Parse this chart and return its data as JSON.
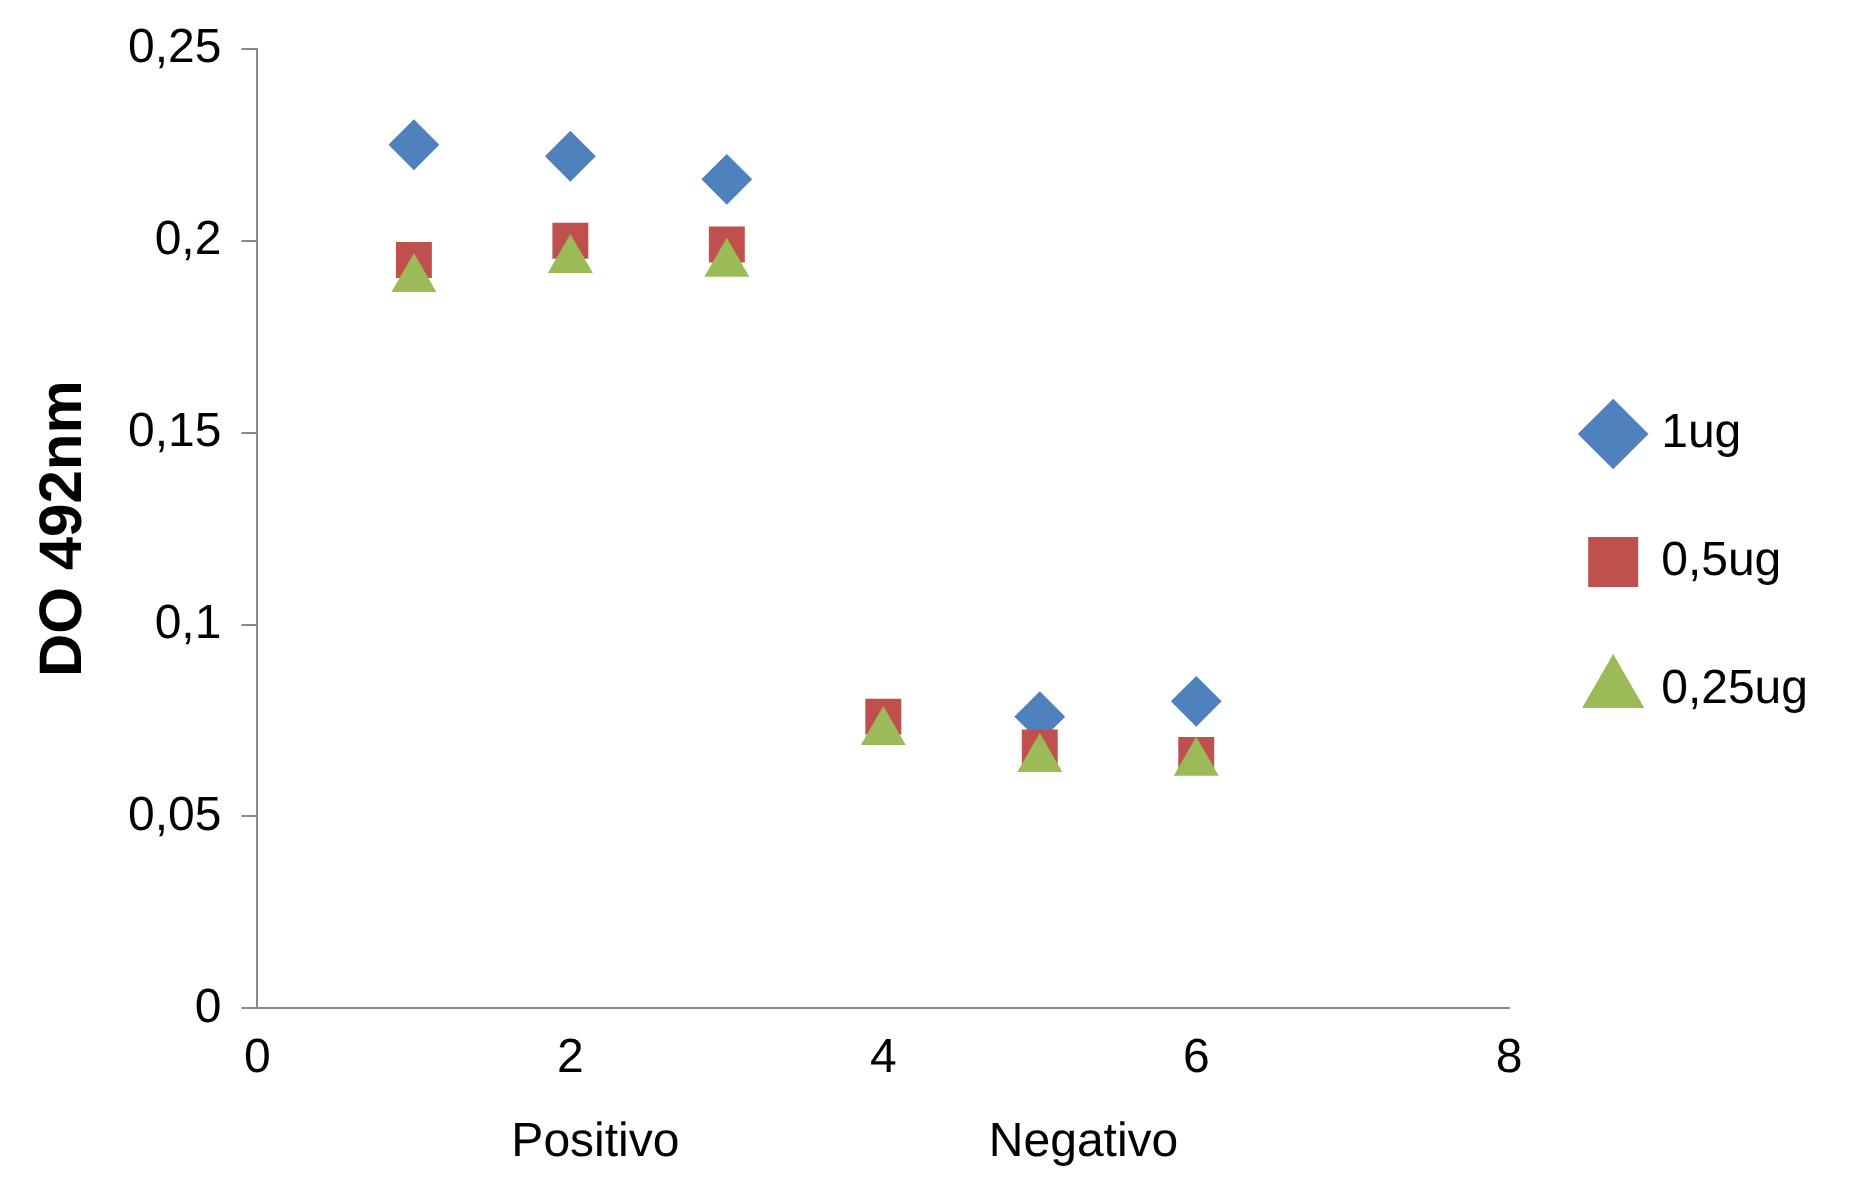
{
  "chart_data": {
    "type": "scatter",
    "ylabel": "DO 492nm",
    "xlim": [
      0,
      8
    ],
    "xticks": [
      0,
      2,
      4,
      6,
      8
    ],
    "ylim": [
      0,
      0.25
    ],
    "yticks": [
      {
        "value": 0,
        "label": "0"
      },
      {
        "value": 0.05,
        "label": "0,05"
      },
      {
        "value": 0.1,
        "label": "0,1"
      },
      {
        "value": 0.15,
        "label": "0,15"
      },
      {
        "value": 0.2,
        "label": "0,2"
      },
      {
        "value": 0.25,
        "label": "0,25"
      }
    ],
    "x": [
      1,
      2,
      3,
      4,
      5,
      6
    ],
    "series": [
      {
        "name": "1ug",
        "color": "#4f81bd",
        "marker": "diamond",
        "values": [
          0.225,
          0.222,
          0.216,
          null,
          0.076,
          0.08
        ]
      },
      {
        "name": "0,5ug",
        "color": "#c0504d",
        "marker": "square",
        "values": [
          0.195,
          0.2,
          0.199,
          0.076,
          0.068,
          0.066
        ]
      },
      {
        "name": "0,25ug",
        "color": "#9bbb59",
        "marker": "triangle",
        "values": [
          0.19,
          0.195,
          0.194,
          0.072,
          0.065,
          0.064
        ]
      }
    ],
    "annotations": [
      "Positivo",
      "Negativo"
    ],
    "grid": false,
    "legend": "right"
  }
}
